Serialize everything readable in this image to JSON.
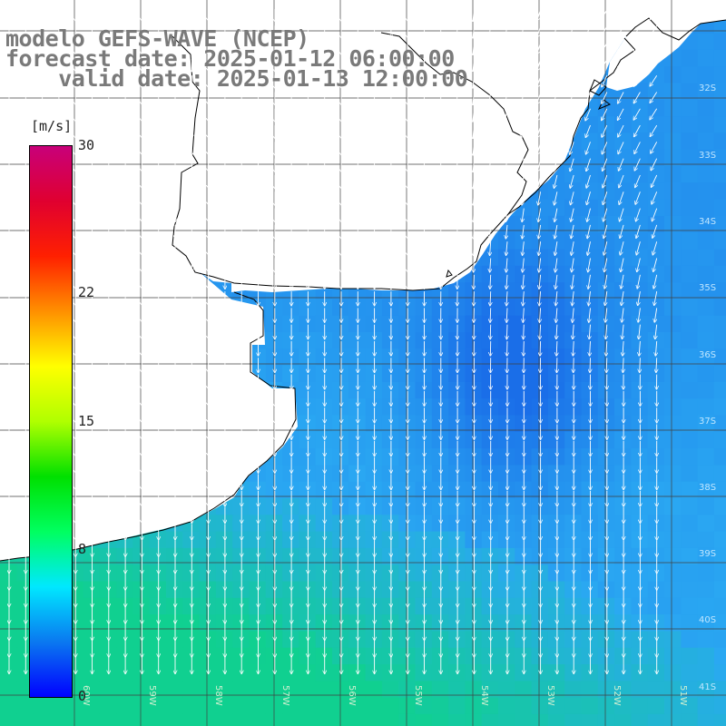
{
  "header": {
    "line1": "modelo GEFS-WAVE (NCEP)",
    "line2": "forecast date: 2025-01-12 06:00:00",
    "line3": "valid date: 2025-01-13 12:00:00"
  },
  "colorbar": {
    "unit": "[m/s]",
    "ticks": [
      "30",
      "22",
      "15",
      "8",
      "0"
    ],
    "tick_values": [
      30,
      22,
      15,
      8,
      0
    ],
    "min": 0,
    "max": 30,
    "colors": [
      "#0000ff",
      "#0a78f0",
      "#00e8ff",
      "#00ff60",
      "#00e000",
      "#b0ff00",
      "#ffff00",
      "#ff9000",
      "#ff2000",
      "#e00030",
      "#c8007a"
    ]
  },
  "map": {
    "land_color": "#ffffff",
    "coast_color": "#000000",
    "grid_color": "#404040",
    "lat_labels": [
      "32S",
      "33S",
      "34S",
      "35S",
      "36S",
      "37S",
      "38S",
      "39S",
      "40S",
      "41S"
    ],
    "lon_labels": [
      "60W",
      "59W",
      "58W",
      "57W",
      "56W",
      "55W",
      "54W",
      "53W",
      "52W",
      "51W"
    ],
    "field_description_colors": {
      "low": "#1a6ee8",
      "mid": "#2aa8f2",
      "high": "#10d090"
    }
  }
}
